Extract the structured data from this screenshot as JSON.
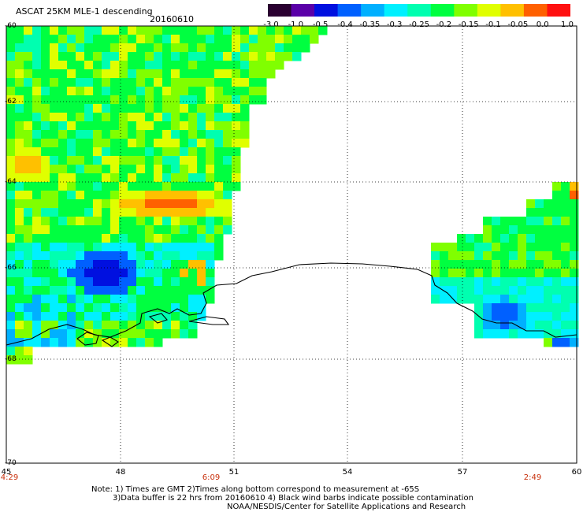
{
  "header": {
    "title": "ASCAT 25KM MLE-1 descending",
    "date": "20160610"
  },
  "colorbar": {
    "labels": [
      "-3.0",
      "-1.0",
      "-0.5",
      "-0.4",
      "-0.35",
      "-0.3",
      "-0.25",
      "-0.2",
      "-0.15",
      "-0.1",
      "-0.05",
      "0.0",
      "1.0"
    ],
    "colors": [
      "#2a0030",
      "#5a00a8",
      "#0010e0",
      "#0060ff",
      "#00b0ff",
      "#00f0ff",
      "#00ffb0",
      "#00ff40",
      "#80ff00",
      "#e0ff00",
      "#ffc000",
      "#ff6000",
      "#ff1010"
    ]
  },
  "axes": {
    "lat_labels": [
      "-60",
      "-62",
      "-64",
      "-66",
      "-68",
      "-70"
    ],
    "lon_labels": [
      "45",
      "48",
      "51",
      "54",
      "57",
      "60"
    ],
    "time_labels": [
      "4:29",
      "6:09",
      "2:49"
    ]
  },
  "notes": {
    "line1": "Note: 1) Times are GMT 2)Times along bottom correspond to measurement at -65S",
    "line2": "3)Data buffer is 22 hrs from 20160610 4) Black wind barbs indicate possible contamination",
    "line3": "NOAA/NESDIS/Center for Satellite Applications and Research"
  }
}
